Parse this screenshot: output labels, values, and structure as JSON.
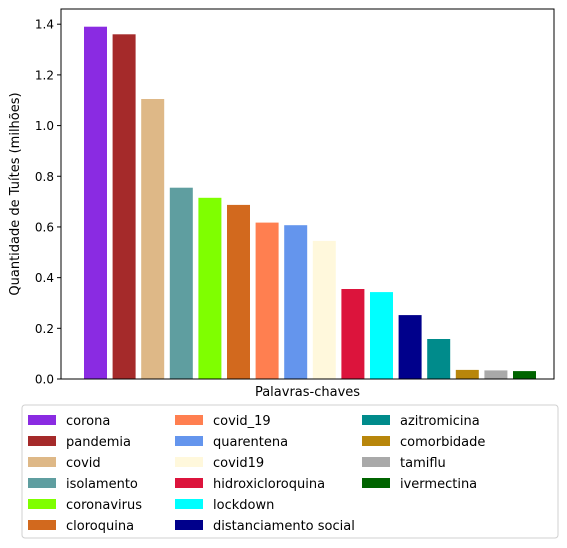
{
  "chart_data": {
    "type": "bar",
    "title": "",
    "xlabel": "Palavras-chaves",
    "ylabel": "Quantidade de Tuítes (milhões)",
    "ylim": [
      0,
      1.46
    ],
    "yticks": [
      "0.0",
      "0.2",
      "0.4",
      "0.6",
      "0.8",
      "1.0",
      "1.2",
      "1.4"
    ],
    "grid": false,
    "legend_position": "bottom",
    "categories": [
      "corona",
      "pandemia",
      "covid",
      "isolamento",
      "coronavirus",
      "cloroquina",
      "covid_19",
      "quarentena",
      "covid19",
      "hidroxicloroquina",
      "lockdown",
      "distanciamento social",
      "azitromicina",
      "comorbidade",
      "tamiflu",
      "ivermectina"
    ],
    "values": [
      1.39,
      1.36,
      1.105,
      0.755,
      0.715,
      0.687,
      0.617,
      0.607,
      0.545,
      0.355,
      0.343,
      0.252,
      0.158,
      0.036,
      0.034,
      0.031
    ],
    "colors": [
      "#8a2be2",
      "#a52a2a",
      "#deb887",
      "#5f9ea0",
      "#7fff00",
      "#d2691e",
      "#ff7f50",
      "#6495ed",
      "#fff8dc",
      "#dc143c",
      "#00ffff",
      "#00008b",
      "#008b8b",
      "#b8860b",
      "#a9a9a9",
      "#006400"
    ]
  }
}
